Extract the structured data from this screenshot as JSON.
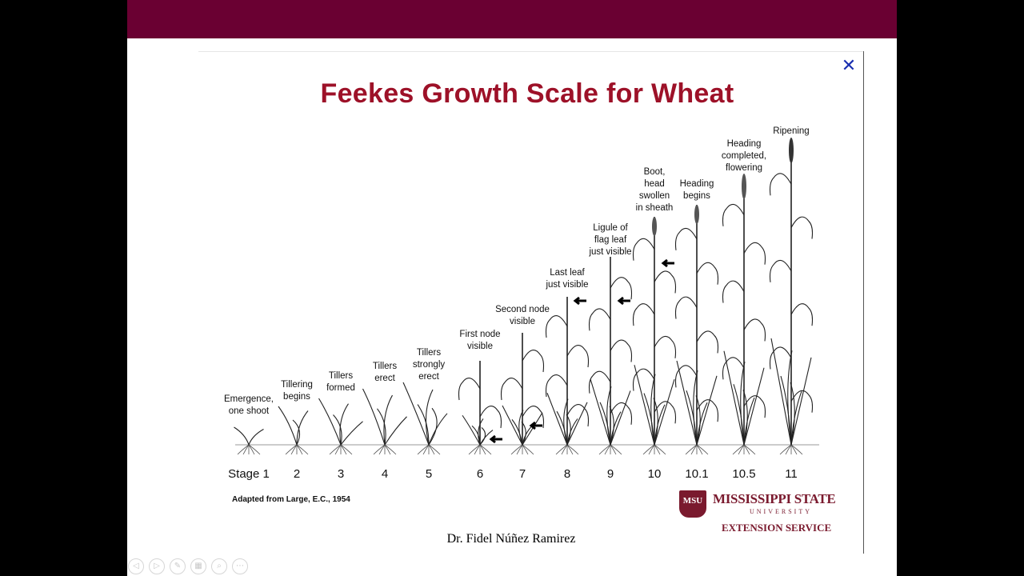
{
  "slide": {
    "title": "Feekes Growth Scale for Wheat",
    "source_note": "Adapted from Large, E.C., 1954",
    "author": "Dr. Fidel Núñez Ramirez",
    "logo": {
      "name": "MISSISSIPPI STATE",
      "university": "UNIVERSITY",
      "extension": "EXTENSION SERVICE",
      "shield_text": "MSU"
    },
    "close_icon": "close-icon"
  },
  "stages": [
    {
      "label": "Stage 1",
      "caption": [
        "Emergence,",
        "one shoot"
      ]
    },
    {
      "label": "2",
      "caption": [
        "Tillering",
        "begins"
      ]
    },
    {
      "label": "3",
      "caption": [
        "Tillers",
        "formed"
      ]
    },
    {
      "label": "4",
      "caption": [
        "Tillers",
        "erect"
      ]
    },
    {
      "label": "5",
      "caption": [
        "Tillers",
        "strongly",
        "erect"
      ]
    },
    {
      "label": "6",
      "caption": [
        "First node",
        "visible"
      ]
    },
    {
      "label": "7",
      "caption": [
        "Second node",
        "visible"
      ]
    },
    {
      "label": "8",
      "caption": [
        "Last leaf",
        "just visible"
      ]
    },
    {
      "label": "9",
      "caption": [
        "Ligule of",
        "flag leaf",
        "just visible"
      ]
    },
    {
      "label": "10",
      "caption": [
        "Boot,",
        "head",
        "swollen",
        "in sheath"
      ]
    },
    {
      "label": "10.1",
      "caption": [
        "Heading",
        "begins"
      ]
    },
    {
      "label": "10.5",
      "caption": [
        "Heading",
        "completed,",
        "flowering"
      ]
    },
    {
      "label": "11",
      "caption": [
        "Ripening"
      ]
    }
  ],
  "controls": [
    "prev-icon",
    "next-icon",
    "pen-icon",
    "slides-icon",
    "zoom-icon",
    "more-icon"
  ]
}
